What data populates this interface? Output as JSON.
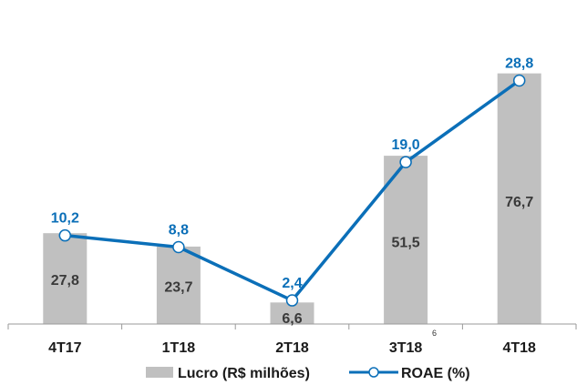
{
  "chart_data": {
    "type": "bar",
    "categories": [
      "4T17",
      "1T18",
      "2T18",
      "3T18",
      "4T18"
    ],
    "series": [
      {
        "name": "Lucro (R$ milhões)",
        "type": "bar",
        "values": [
          27.8,
          23.7,
          6.6,
          51.5,
          76.7
        ],
        "labels": [
          "27,8",
          "23,7",
          "6,6",
          "51,5",
          "76,7"
        ],
        "color": "#c0c0c0"
      },
      {
        "name": "ROAE (%)",
        "type": "line",
        "values": [
          10.2,
          8.8,
          2.4,
          19.0,
          28.8
        ],
        "labels": [
          "10,2",
          "8,8",
          "2,4",
          "19,0",
          "28,8"
        ],
        "color": "#0b6fb8"
      }
    ],
    "grid": false,
    "legend_position": "bottom",
    "footnote": "6"
  }
}
